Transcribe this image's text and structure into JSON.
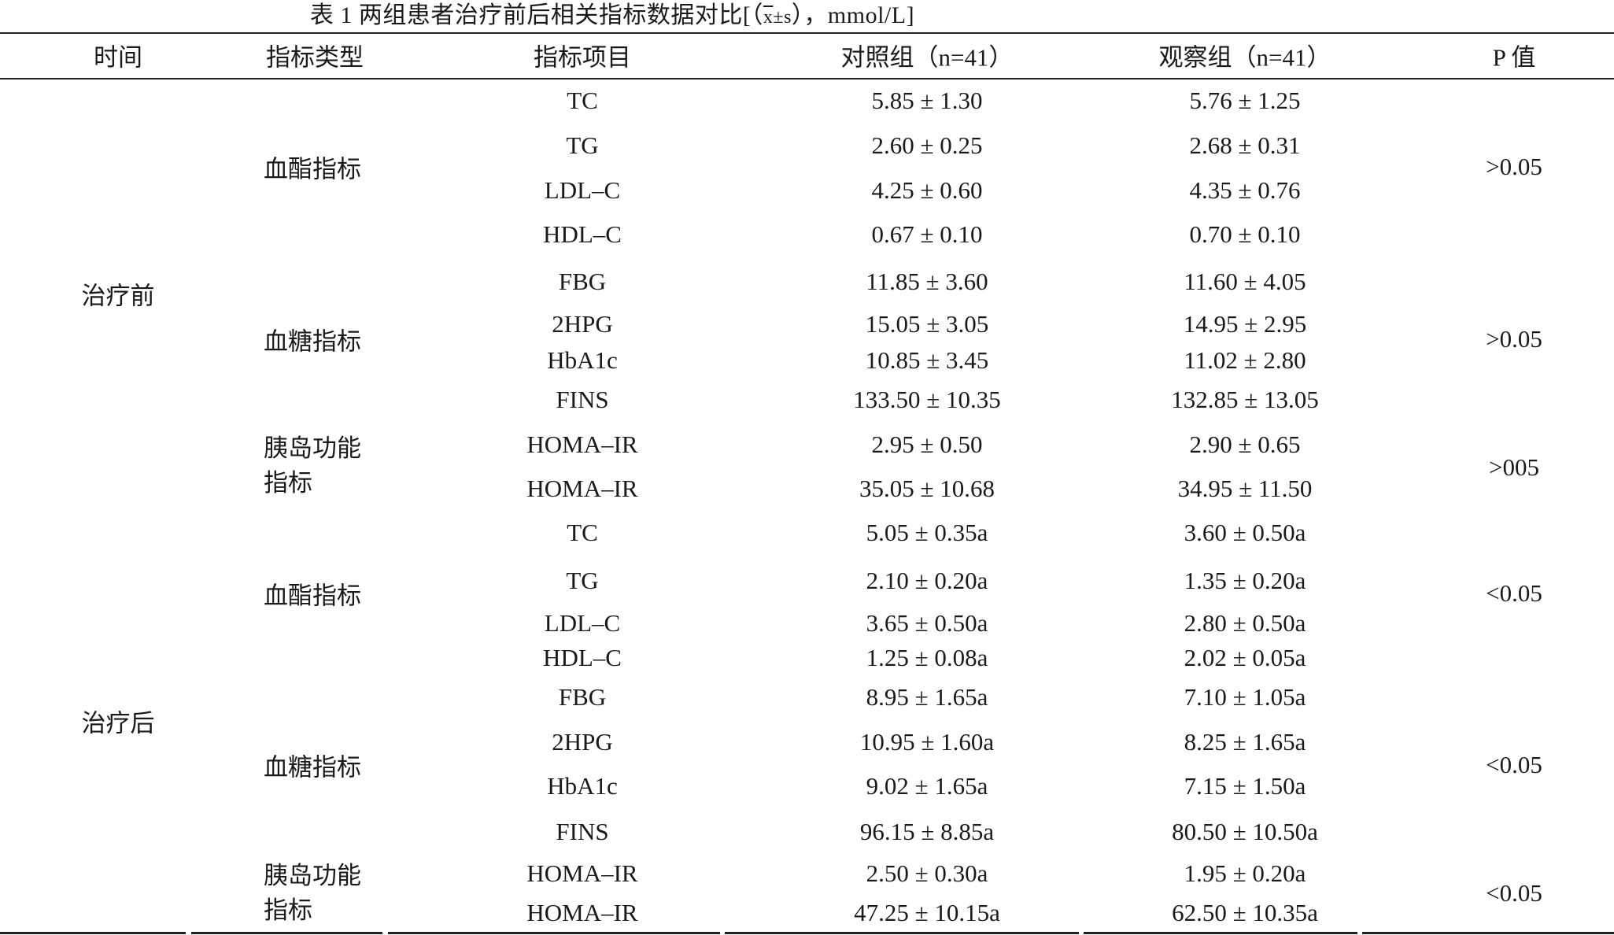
{
  "caption": {
    "prefix": "表 1  两组患者治疗前后相关指标数据对比[（",
    "xbar": "x",
    "mid": "±",
    "s": "s",
    "suffix": "），mmol/L]"
  },
  "headers": {
    "time": "时间",
    "type": "指标类型",
    "item": "指标项目",
    "control": "对照组（n=41）",
    "observe": "观察组（n=41）",
    "p": "P 值"
  },
  "periods": [
    "治疗前",
    "治疗后"
  ],
  "groups": [
    {
      "label": "血酯指标",
      "p": ">0.05"
    },
    {
      "label": "血糖指标",
      "p": ">0.05"
    },
    {
      "label": "胰岛功能指标",
      "p": ">005"
    },
    {
      "label": "血酯指标",
      "p": "<0.05"
    },
    {
      "label": "血糖指标",
      "p": "<0.05"
    },
    {
      "label": "胰岛功能指标",
      "p": "<0.05"
    }
  ],
  "rows": [
    {
      "item": "TC",
      "control": "5.85 ± 1.30",
      "observe": "5.76 ± 1.25"
    },
    {
      "item": "TG",
      "control": "2.60 ± 0.25",
      "observe": "2.68 ± 0.31"
    },
    {
      "item": "LDL–C",
      "control": "4.25 ± 0.60",
      "observe": "4.35 ± 0.76"
    },
    {
      "item": "HDL–C",
      "control": "0.67 ± 0.10",
      "observe": "0.70 ± 0.10"
    },
    {
      "item": "FBG",
      "control": "11.85 ± 3.60",
      "observe": "11.60 ± 4.05"
    },
    {
      "item": "2HPG",
      "control": "15.05 ± 3.05",
      "observe": "14.95 ± 2.95"
    },
    {
      "item": "HbA1c",
      "control": "10.85 ± 3.45",
      "observe": "11.02 ± 2.80"
    },
    {
      "item": "FINS",
      "control": "133.50 ± 10.35",
      "observe": "132.85 ± 13.05"
    },
    {
      "item": "HOMA–IR",
      "control": "2.95 ± 0.50",
      "observe": "2.90 ± 0.65"
    },
    {
      "item": "HOMA–IR",
      "control": "35.05 ± 10.68",
      "observe": "34.95 ± 11.50"
    },
    {
      "item": "TC",
      "control": "5.05 ± 0.35a",
      "observe": "3.60 ± 0.50a"
    },
    {
      "item": "TG",
      "control": "2.10 ± 0.20a",
      "observe": "1.35 ± 0.20a"
    },
    {
      "item": "LDL–C",
      "control": "3.65 ± 0.50a",
      "observe": "2.80 ± 0.50a"
    },
    {
      "item": "HDL–C",
      "control": "1.25 ± 0.08a",
      "observe": "2.02 ± 0.05a"
    },
    {
      "item": "FBG",
      "control": "8.95 ± 1.65a",
      "observe": "7.10 ± 1.05a"
    },
    {
      "item": "2HPG",
      "control": "10.95 ± 1.60a",
      "observe": "8.25 ± 1.65a"
    },
    {
      "item": "HbA1c",
      "control": "9.02 ± 1.65a",
      "observe": "7.15 ± 1.50a"
    },
    {
      "item": "FINS",
      "control": "96.15 ± 8.85a",
      "observe": "80.50 ± 10.50a"
    },
    {
      "item": "HOMA–IR",
      "control": "2.50 ± 0.30a",
      "observe": "1.95 ± 0.20a"
    },
    {
      "item": "HOMA–IR",
      "control": "47.25 ± 10.15a",
      "observe": "62.50 ± 10.35a"
    }
  ]
}
